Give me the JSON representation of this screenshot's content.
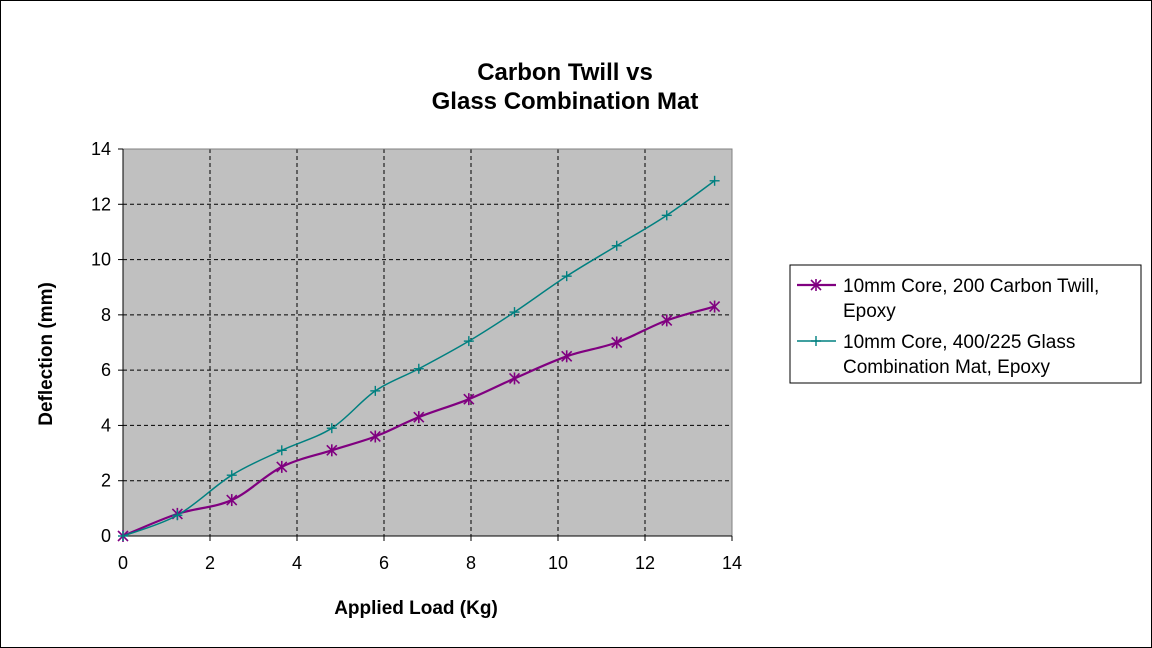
{
  "chart_data": {
    "type": "line",
    "title_lines": [
      "Carbon Twill vs",
      "Glass Combination Mat"
    ],
    "xlabel": "Applied Load (Kg)",
    "ylabel": "Deflection (mm)",
    "xlim": [
      0,
      14
    ],
    "ylim": [
      0,
      14
    ],
    "x_ticks": [
      "0",
      "2",
      "4",
      "6",
      "8",
      "10",
      "12",
      "14"
    ],
    "y_ticks": [
      "0",
      "2",
      "4",
      "6",
      "8",
      "10",
      "12",
      "14"
    ],
    "grid": true,
    "legend_position": "right",
    "series": [
      {
        "name": "10mm Core, 200 Carbon Twill, Epoxy",
        "legend_lines": [
          "10mm Core, 200 Carbon Twill,",
          "Epoxy"
        ],
        "color": "#800080",
        "marker": "asterisk",
        "x": [
          0,
          1.25,
          2.5,
          3.65,
          4.8,
          5.8,
          6.8,
          7.95,
          9.0,
          10.2,
          11.35,
          12.5,
          13.6
        ],
        "y": [
          0,
          0.8,
          1.3,
          2.5,
          3.1,
          3.6,
          4.3,
          4.95,
          5.7,
          6.5,
          7.0,
          7.8,
          8.3
        ]
      },
      {
        "name": "10mm Core, 400/225 Glass Combination Mat, Epoxy",
        "legend_lines": [
          "10mm Core, 400/225 Glass",
          "Combination Mat, Epoxy"
        ],
        "color": "#008080",
        "marker": "plus",
        "x": [
          0,
          1.25,
          2.5,
          3.65,
          4.8,
          5.8,
          6.8,
          7.95,
          9.0,
          10.2,
          11.35,
          12.5,
          13.6
        ],
        "y": [
          0,
          0.75,
          2.2,
          3.1,
          3.9,
          5.25,
          6.05,
          7.05,
          8.1,
          9.4,
          10.5,
          11.6,
          12.85
        ]
      }
    ]
  },
  "colors": {
    "plot_background": "#c0c0c0",
    "grid": "#000000"
  }
}
